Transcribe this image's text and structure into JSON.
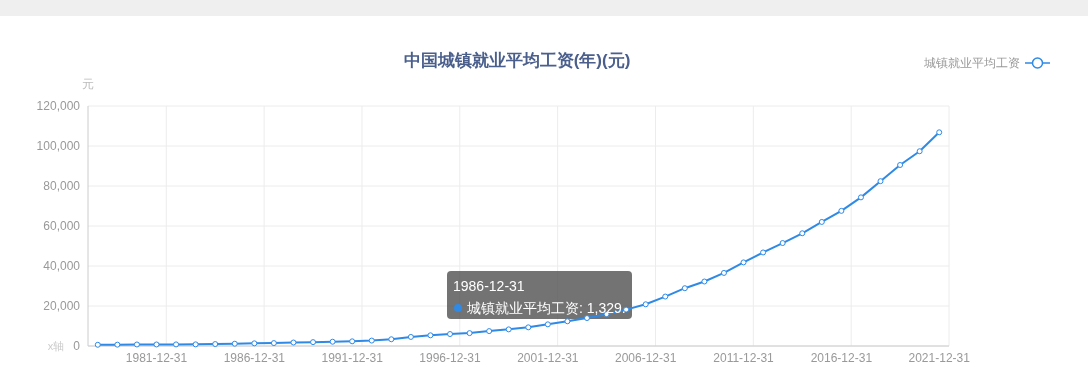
{
  "chart_data": {
    "type": "line",
    "title": "中国城镇就业平均工资(年)(元)",
    "xlabel": "x轴",
    "ylabel": "元",
    "categories": [
      null,
      null,
      null,
      "1981-12-31",
      null,
      null,
      null,
      null,
      "1986-12-31",
      null,
      null,
      null,
      null,
      "1991-12-31",
      null,
      null,
      null,
      null,
      "1996-12-31",
      null,
      null,
      null,
      null,
      "2001-12-31",
      null,
      null,
      null,
      null,
      "2006-12-31",
      null,
      null,
      null,
      null,
      "2011-12-31",
      null,
      null,
      null,
      null,
      "2016-12-31",
      null,
      null,
      null,
      null,
      "2021-12-31"
    ],
    "series": [
      {
        "name": "城镇就业平均工资",
        "color": "#2e8ae6",
        "values": [
          615,
          668,
          762,
          772,
          798,
          826,
          974,
          1148,
          1329,
          1459,
          1747,
          1935,
          2140,
          2340,
          2711,
          3371,
          4538,
          5348,
          5980,
          6444,
          7446,
          8319,
          9333,
          10834,
          12373,
          13969,
          15920,
          18200,
          20856,
          24721,
          28898,
          32244,
          36539,
          41799,
          46769,
          51483,
          56360,
          62029,
          67569,
          74318,
          82413,
          90501,
          97379,
          106837
        ]
      }
    ],
    "ylim": [
      0,
      120000
    ],
    "yticks": [
      0,
      {
        "value": 20000,
        "label": "20,000"
      },
      {
        "value": 40000,
        "label": "40,000"
      },
      {
        "value": 60000,
        "label": "60,000"
      },
      {
        "value": 80000,
        "label": "80,000"
      },
      {
        "value": 100000,
        "label": "100,000"
      },
      {
        "value": 120000,
        "label": "120,000"
      }
    ],
    "grid": true,
    "legend": "top right",
    "marker": "circle",
    "line_style": "solid",
    "annotations": [
      "1986-12-31",
      "城镇就业平均工资: 1,329."
    ]
  }
}
